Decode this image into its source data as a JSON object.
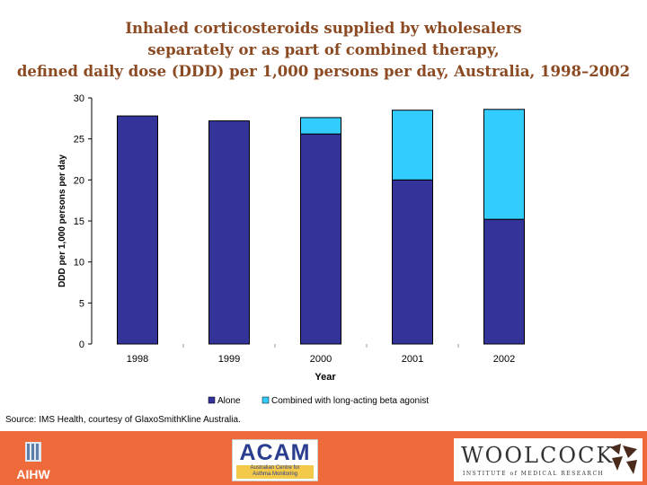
{
  "title": {
    "line1": "Inhaled corticosteroids supplied by wholesalers",
    "line2": "separately or as part of combined therapy,",
    "line3": "defined daily dose (DDD) per 1,000 persons per day, Australia, 1998–2002"
  },
  "chart_data": {
    "type": "bar",
    "stacked": true,
    "categories": [
      "1998",
      "1999",
      "2000",
      "2001",
      "2002"
    ],
    "series": [
      {
        "name": "Alone",
        "values": [
          27.8,
          27.2,
          25.6,
          20.0,
          15.2
        ],
        "color": "#333399"
      },
      {
        "name": "Combined with long-acting beta agonist",
        "values": [
          0,
          0,
          2.0,
          8.5,
          13.4
        ],
        "color": "#33ccff"
      }
    ],
    "xlabel": "Year",
    "ylabel": "DDD per 1,000 persons per day",
    "ylim": [
      0,
      30
    ],
    "yticks": [
      "0",
      "5",
      "10",
      "15",
      "20",
      "25",
      "30"
    ],
    "grid": false,
    "legend_position": "bottom"
  },
  "source": "Source: IMS Health, courtesy of GlaxoSmithKline Australia.",
  "footer": {
    "aihw": "AIHW",
    "acam_main": "ACAM",
    "acam_sub_line1": "Australian Centre for",
    "acam_sub_line2": "Asthma Monitoring",
    "woolcock_main": "WOOLCOCK",
    "woolcock_sub": "INSTITUTE of MEDICAL RESEARCH",
    "background_color": "#ee6a3a"
  }
}
